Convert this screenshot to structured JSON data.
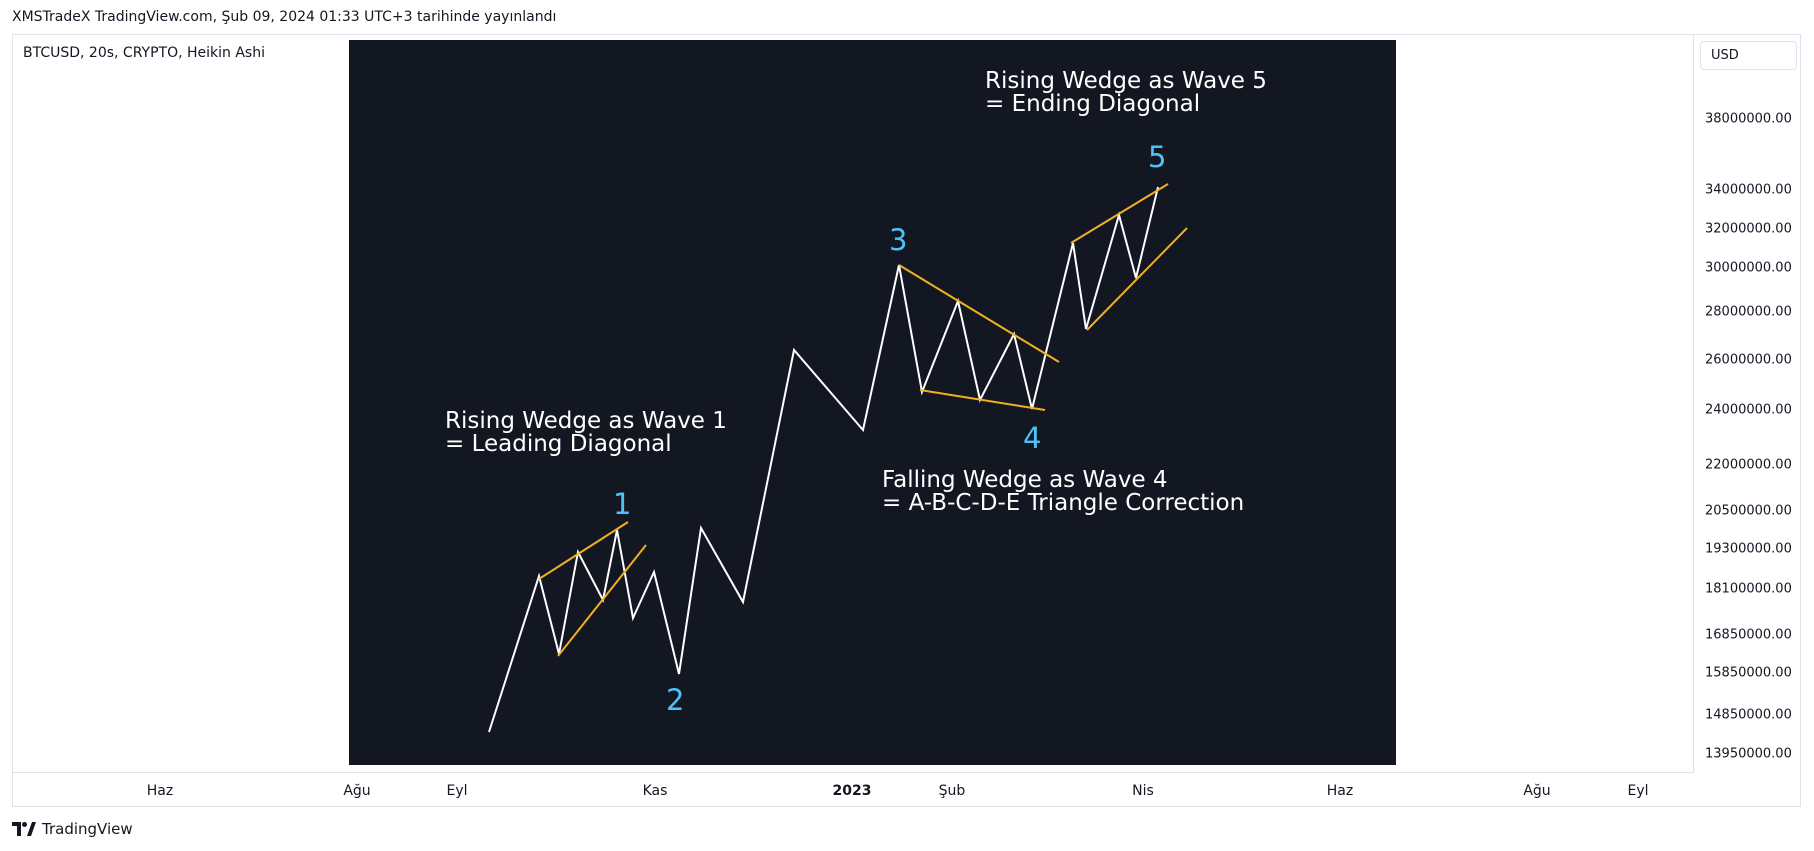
{
  "header": {
    "published_line": "XMSTradeX TradingView.com, Şub 09, 2024 01:33 UTC+3 tarihinde yayınlandı"
  },
  "chart_header": {
    "symbol_line": "BTCUSD, 20s, CRYPTO, Heikin Ashi"
  },
  "price_axis": {
    "currency": "USD",
    "labels": [
      "38000000.00",
      "34000000.00",
      "32000000.00",
      "30000000.00",
      "28000000.00",
      "26000000.00",
      "24000000.00",
      "22000000.00",
      "20500000.00",
      "19300000.00",
      "18100000.00",
      "16850000.00",
      "15850000.00",
      "14850000.00",
      "13950000.00"
    ]
  },
  "time_axis": {
    "labels": [
      {
        "text": "Haz",
        "bold": false
      },
      {
        "text": "Ağu",
        "bold": false
      },
      {
        "text": "Eyl",
        "bold": false
      },
      {
        "text": "Kas",
        "bold": false
      },
      {
        "text": "2023",
        "bold": true
      },
      {
        "text": "Şub",
        "bold": false
      },
      {
        "text": "Nis",
        "bold": false
      },
      {
        "text": "Haz",
        "bold": false
      },
      {
        "text": "Ağu",
        "bold": false
      },
      {
        "text": "Eyl",
        "bold": false
      }
    ]
  },
  "illustration": {
    "wave_labels": [
      "1",
      "2",
      "3",
      "4",
      "5"
    ],
    "annotations": [
      {
        "line1": "Rising Wedge as Wave 1",
        "line2": "= Leading Diagonal"
      },
      {
        "line1": "Falling Wedge as Wave 4",
        "line2": "= A-B-C-D-E Triangle Correction"
      },
      {
        "line1": "Rising Wedge as Wave 5",
        "line2": "= Ending Diagonal"
      }
    ],
    "colors": {
      "background": "#131722",
      "wave": "#ffffff",
      "wedge": "#f0b022",
      "label": "#4fc3f7"
    }
  },
  "footer": {
    "brand": "TradingView"
  }
}
